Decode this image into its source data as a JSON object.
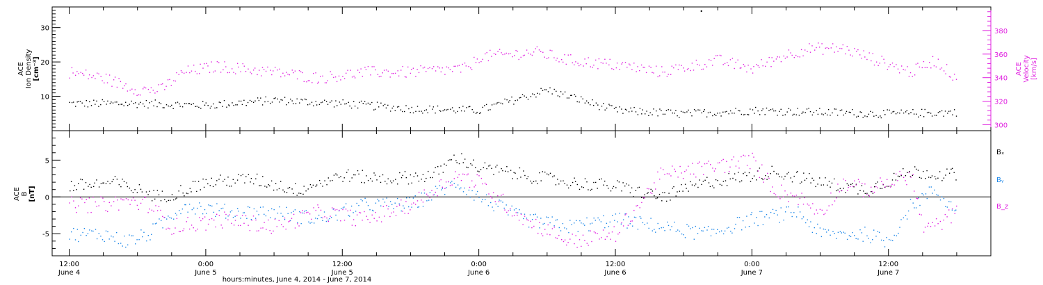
{
  "chart_data": [
    {
      "type": "scatter",
      "panel": "top",
      "left_axis": {
        "label_lines": [
          "ACE",
          "Ion Density",
          "[cm⁻³]"
        ],
        "ylim": [
          0,
          36
        ],
        "ticks": [
          10,
          20,
          30
        ],
        "color": "#000000"
      },
      "right_axis": {
        "label_lines": [
          "ACE",
          "Velocity",
          "[km/s]"
        ],
        "ylim": [
          295,
          400
        ],
        "ticks": [
          300,
          320,
          340,
          360,
          380
        ],
        "color": "#e020e0"
      },
      "series": [
        {
          "axis": "left",
          "color": "#000000",
          "x": [
            0,
            6,
            12,
            18,
            24,
            30,
            36,
            42,
            48,
            54,
            60,
            66,
            72,
            78
          ],
          "values": [
            8,
            8,
            7.5,
            9,
            8,
            6.5,
            6,
            12,
            6,
            5,
            6,
            5.5,
            5,
            5.5
          ],
          "noise": 1.2
        },
        {
          "axis": "right",
          "color": "#e020e0",
          "x": [
            0,
            3,
            6,
            8,
            10,
            13,
            18,
            22,
            26,
            30,
            35,
            36,
            41,
            44,
            49,
            52,
            57,
            60,
            63,
            65,
            68,
            71,
            74,
            76,
            78
          ],
          "values": [
            345,
            340,
            330,
            330,
            345,
            350,
            345,
            340,
            345,
            345,
            348,
            358,
            362,
            355,
            350,
            345,
            355,
            348,
            360,
            365,
            365,
            355,
            345,
            355,
            340
          ],
          "noise": 5
        }
      ],
      "markers": [
        {
          "axis": "left",
          "x": 55.5,
          "value": 35
        }
      ]
    },
    {
      "type": "scatter",
      "panel": "bottom",
      "left_axis": {
        "label_lines": [
          "ACE",
          "B",
          "[nT]"
        ],
        "ylim": [
          -8,
          9
        ],
        "ticks": [
          -5,
          0,
          5
        ]
      },
      "series": [
        {
          "name": "Bₓ",
          "color": "#000000",
          "x": [
            0,
            4,
            8,
            12,
            16,
            20,
            24,
            28,
            32,
            34,
            36,
            40,
            44,
            48,
            52,
            56,
            60,
            62,
            66,
            70,
            74,
            78
          ],
          "values": [
            1.5,
            2,
            0,
            2,
            2.5,
            1,
            3,
            2.5,
            3,
            5.5,
            4,
            3,
            2,
            1.5,
            0,
            2,
            3,
            3.5,
            2,
            1,
            3.5,
            3
          ],
          "noise": 0.9
        },
        {
          "name": "Bᵧ",
          "color": "#1a86e8",
          "x": [
            0,
            3,
            5,
            7,
            10,
            14,
            18,
            22,
            26,
            30,
            34,
            36,
            40,
            44,
            48,
            52,
            56,
            60,
            64,
            66,
            70,
            72,
            74,
            76,
            78
          ],
          "values": [
            -5,
            -5,
            -6,
            -5,
            -1,
            -2,
            -2,
            -3,
            -1,
            -1,
            2,
            0,
            -3,
            -4,
            -3,
            -4,
            -5,
            -3,
            -2,
            -5,
            -5,
            -6,
            -1,
            1,
            -2
          ],
          "noise": 1
        },
        {
          "name": "B_z",
          "color": "#e020e0",
          "x": [
            0,
            3,
            5,
            7,
            9,
            14,
            18,
            22,
            26,
            30,
            34,
            36,
            40,
            44,
            48,
            52,
            56,
            60,
            62,
            64,
            66,
            68,
            70,
            74,
            75,
            76,
            78
          ],
          "values": [
            -1,
            -1,
            -0.5,
            -1,
            -4,
            -3,
            -4,
            -2,
            -3,
            -1,
            3,
            2,
            -3,
            -6,
            -5,
            3,
            4,
            5,
            1,
            0,
            -2,
            2,
            1,
            3,
            -4,
            -4,
            -2
          ],
          "noise": 1.1
        }
      ],
      "legend": [
        "Bₓ",
        "Bᵧ",
        "B_z"
      ]
    }
  ],
  "x_axis": {
    "range_hours": [
      -1.5,
      81
    ],
    "ticks": [
      {
        "hour": 0,
        "time": "12:00",
        "date": "June  4"
      },
      {
        "hour": 12,
        "time": "0:00",
        "date": "June  5"
      },
      {
        "hour": 24,
        "time": "12:00",
        "date": "June  5"
      },
      {
        "hour": 36,
        "time": "0:00",
        "date": "June  6"
      },
      {
        "hour": 48,
        "time": "12:00",
        "date": "June  6"
      },
      {
        "hour": 60,
        "time": "0:00",
        "date": "June  7"
      },
      {
        "hour": 72,
        "time": "12:00",
        "date": "June  7"
      }
    ],
    "title": "hours:minutes, June  4, 2014 - June  7, 2014"
  }
}
